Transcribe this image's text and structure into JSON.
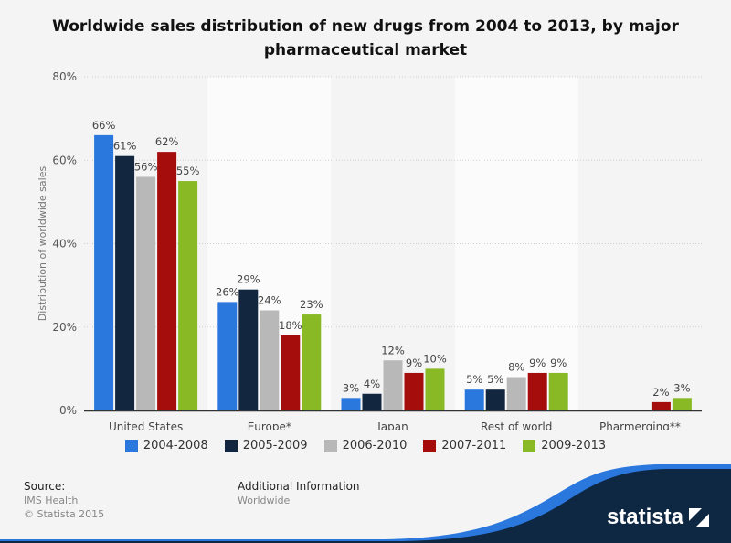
{
  "chart_data": {
    "type": "bar",
    "title": "Worldwide sales distribution of new drugs from 2004 to 2013, by major pharmaceutical market",
    "ylabel": "Distribution of worldwide sales",
    "xlabel": "",
    "ylim": [
      0,
      80
    ],
    "yticks": [
      "0%",
      "20%",
      "40%",
      "60%",
      "80%"
    ],
    "ytick_values": [
      0,
      20,
      40,
      60,
      80
    ],
    "grid": true,
    "legend_position": "bottom",
    "categories": [
      "United States",
      "Europe*",
      "Japan",
      "Rest of world",
      "Pharmerging**"
    ],
    "series": [
      {
        "name": "2004-2008",
        "color": "#2a77dd",
        "values": [
          66,
          26,
          3,
          5,
          null
        ]
      },
      {
        "name": "2005-2009",
        "color": "#12263f",
        "values": [
          61,
          29,
          4,
          5,
          null
        ]
      },
      {
        "name": "2006-2010",
        "color": "#b8b8b8",
        "values": [
          56,
          24,
          12,
          8,
          null
        ]
      },
      {
        "name": "2007-2011",
        "color": "#a50d0d",
        "values": [
          62,
          18,
          9,
          9,
          2
        ]
      },
      {
        "name": "2009-2013",
        "color": "#89ba26",
        "values": [
          55,
          23,
          10,
          9,
          3
        ]
      }
    ]
  },
  "footer": {
    "source_label": "Source:",
    "source": "IMS Health",
    "copyright": "© Statista 2015",
    "additional_label": "Additional Information",
    "additional": "Worldwide",
    "logo": "statista"
  }
}
